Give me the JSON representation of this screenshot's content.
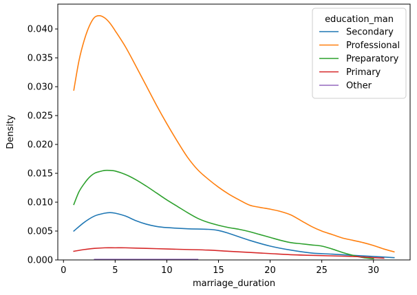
{
  "chart_data": {
    "type": "line",
    "xlabel": "marriage_duration",
    "ylabel": "Density",
    "xlim": [
      -0.55,
      33.55
    ],
    "ylim": [
      0,
      0.0443
    ],
    "xticks": [
      0,
      5,
      10,
      15,
      20,
      25,
      30
    ],
    "xtick_labels": [
      "0",
      "5",
      "10",
      "15",
      "20",
      "25",
      "30"
    ],
    "yticks": [
      0,
      0.005,
      0.01,
      0.015,
      0.02,
      0.025,
      0.03,
      0.035,
      0.04
    ],
    "ytick_labels": [
      "0.000",
      "0.005",
      "0.010",
      "0.015",
      "0.020",
      "0.025",
      "0.030",
      "0.035",
      "0.040"
    ],
    "grid": false,
    "legend": {
      "title": "education_man",
      "placement": "top-right"
    },
    "series": [
      {
        "name": "Secondary",
        "color": "#1f77b4",
        "x": [
          1,
          2,
          3,
          4,
          4.5,
          5,
          6,
          7,
          8,
          9,
          10,
          12,
          14,
          15,
          16,
          18,
          20,
          22,
          24,
          26,
          28,
          30,
          32
        ],
        "y": [
          0.005,
          0.0065,
          0.0076,
          0.0081,
          0.0082,
          0.0081,
          0.0076,
          0.0068,
          0.0062,
          0.0058,
          0.0056,
          0.0054,
          0.0053,
          0.0051,
          0.0046,
          0.0034,
          0.0024,
          0.0017,
          0.0012,
          0.001,
          0.0008,
          0.0006,
          0.0004
        ]
      },
      {
        "name": "Professional",
        "color": "#ff7f0e",
        "x": [
          1,
          1.5,
          2,
          2.5,
          3,
          3.5,
          4,
          4.5,
          5,
          6,
          7,
          8,
          9,
          10,
          11,
          12,
          13,
          14,
          15,
          16,
          17,
          18,
          19,
          20,
          21,
          22,
          23,
          24,
          25,
          26,
          27,
          28,
          29,
          30,
          31,
          32
        ],
        "y": [
          0.0294,
          0.0345,
          0.038,
          0.0405,
          0.042,
          0.0423,
          0.0419,
          0.041,
          0.0397,
          0.0369,
          0.0336,
          0.0302,
          0.0268,
          0.0236,
          0.0206,
          0.0178,
          0.0156,
          0.014,
          0.0126,
          0.0114,
          0.0104,
          0.0095,
          0.0091,
          0.0088,
          0.0084,
          0.0078,
          0.0068,
          0.0058,
          0.005,
          0.0044,
          0.0038,
          0.0034,
          0.003,
          0.0025,
          0.0019,
          0.0014
        ]
      },
      {
        "name": "Preparatory",
        "color": "#2ca02c",
        "x": [
          1,
          1.5,
          2,
          2.5,
          3,
          3.5,
          4,
          4.5,
          5,
          6,
          7,
          8,
          9,
          10,
          11,
          12,
          13,
          14,
          15,
          16,
          17,
          18,
          19,
          20,
          21,
          22,
          23,
          24,
          25,
          26,
          27,
          28,
          29,
          30
        ],
        "y": [
          0.0096,
          0.0118,
          0.0132,
          0.0143,
          0.015,
          0.0153,
          0.0155,
          0.0155,
          0.0154,
          0.0148,
          0.0139,
          0.0128,
          0.0116,
          0.0104,
          0.0093,
          0.0082,
          0.0072,
          0.0065,
          0.006,
          0.0056,
          0.0053,
          0.0049,
          0.0044,
          0.0039,
          0.0034,
          0.003,
          0.0028,
          0.0026,
          0.0024,
          0.0019,
          0.0013,
          0.0008,
          0.0004,
          0.0002
        ]
      },
      {
        "name": "Primary",
        "color": "#d62728",
        "x": [
          1,
          2,
          3,
          4,
          5,
          6,
          8,
          10,
          12,
          14,
          16,
          18,
          20,
          22,
          24,
          26,
          28,
          30,
          31
        ],
        "y": [
          0.0015,
          0.0018,
          0.002,
          0.0021,
          0.0021,
          0.0021,
          0.002,
          0.0019,
          0.0018,
          0.0017,
          0.0015,
          0.0013,
          0.0011,
          0.0009,
          0.0008,
          0.0007,
          0.0006,
          0.0004,
          0.0003
        ]
      },
      {
        "name": "Other",
        "color": "#9467bd",
        "x": [
          3,
          5,
          7,
          9,
          11,
          13
        ],
        "y": [
          0.0001,
          0.0001,
          0.0001,
          0.0001,
          0.0001,
          0.0001
        ]
      }
    ]
  }
}
